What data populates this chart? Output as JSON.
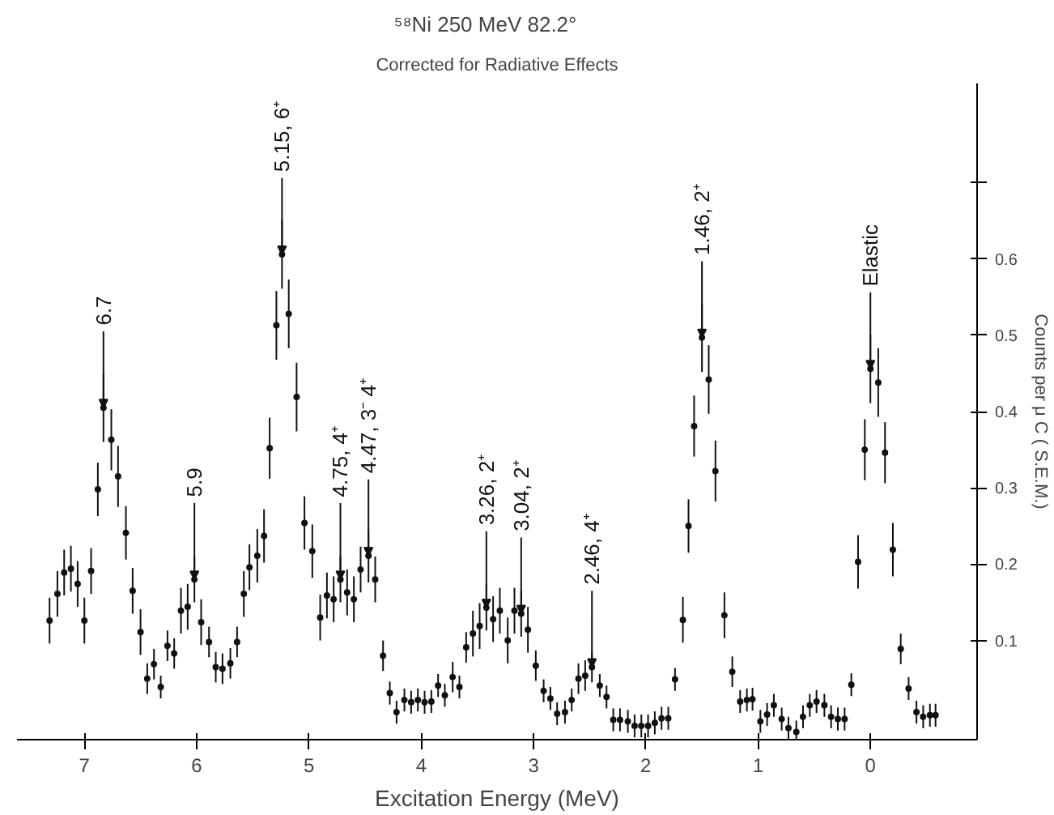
{
  "chart_data": {
    "type": "scatter",
    "title": "⁵⁸Ni   250 MeV   82.2°",
    "subtitle": "Corrected for Radiative Effects",
    "xlabel": "Excitation Energy (MeV)",
    "ylabel": "Counts per μ C ( S.E.M.)",
    "x": [
      7.31,
      7.24,
      7.18,
      7.12,
      7.06,
      7.0,
      6.94,
      6.88,
      6.83,
      6.76,
      6.7,
      6.63,
      6.57,
      6.5,
      6.44,
      6.38,
      6.32,
      6.26,
      6.2,
      6.14,
      6.08,
      6.02,
      5.96,
      5.89,
      5.83,
      5.77,
      5.7,
      5.64,
      5.58,
      5.53,
      5.46,
      5.4,
      5.35,
      5.29,
      5.24,
      5.18,
      5.11,
      5.04,
      4.97,
      4.9,
      4.84,
      4.78,
      4.72,
      4.66,
      4.6,
      4.54,
      4.47,
      4.41,
      4.34,
      4.28,
      4.22,
      4.15,
      4.09,
      4.03,
      3.97,
      3.91,
      3.85,
      3.79,
      3.72,
      3.66,
      3.6,
      3.54,
      3.48,
      3.42,
      3.36,
      3.3,
      3.23,
      3.17,
      3.11,
      3.05,
      2.98,
      2.91,
      2.85,
      2.79,
      2.72,
      2.66,
      2.6,
      2.54,
      2.48,
      2.41,
      2.35,
      2.29,
      2.23,
      2.16,
      2.1,
      2.04,
      1.98,
      1.92,
      1.86,
      1.8,
      1.74,
      1.67,
      1.62,
      1.57,
      1.5,
      1.44,
      1.38,
      1.3,
      1.23,
      1.16,
      1.1,
      1.05,
      0.98,
      0.92,
      0.86,
      0.79,
      0.73,
      0.66,
      0.6,
      0.54,
      0.48,
      0.41,
      0.35,
      0.29,
      0.23,
      0.17,
      0.11,
      0.05,
      0.0,
      -0.07,
      -0.13,
      -0.2,
      -0.27,
      -0.34,
      -0.41,
      -0.47,
      -0.53,
      -0.58
    ],
    "values": [
      0.126,
      0.161,
      0.189,
      0.194,
      0.174,
      0.126,
      0.191,
      0.298,
      0.405,
      0.363,
      0.315,
      0.241,
      0.165,
      0.111,
      0.05,
      0.069,
      0.039,
      0.093,
      0.083,
      0.139,
      0.144,
      0.18,
      0.124,
      0.098,
      0.065,
      0.063,
      0.07,
      0.098,
      0.161,
      0.196,
      0.211,
      0.237,
      0.352,
      0.513,
      0.606,
      0.528,
      0.419,
      0.254,
      0.217,
      0.13,
      0.159,
      0.154,
      0.18,
      0.163,
      0.154,
      0.193,
      0.211,
      0.18,
      0.08,
      0.031,
      0.006,
      0.022,
      0.019,
      0.022,
      0.019,
      0.02,
      0.041,
      0.028,
      0.052,
      0.039,
      0.091,
      0.109,
      0.119,
      0.143,
      0.128,
      0.139,
      0.1,
      0.139,
      0.135,
      0.114,
      0.067,
      0.034,
      0.024,
      0.004,
      0.006,
      0.022,
      0.05,
      0.054,
      0.065,
      0.041,
      0.026,
      -0.004,
      -0.004,
      -0.006,
      -0.012,
      -0.012,
      -0.012,
      -0.008,
      -0.002,
      -0.002,
      0.049,
      0.127,
      0.25,
      0.381,
      0.497,
      0.442,
      0.322,
      0.133,
      0.059,
      0.02,
      0.022,
      0.023,
      -0.006,
      0.003,
      0.015,
      -0.003,
      -0.015,
      -0.02,
      0.0,
      0.015,
      0.02,
      0.015,
      0.0,
      -0.003,
      -0.003,
      0.042,
      0.203,
      0.35,
      0.456,
      0.438,
      0.346,
      0.219,
      0.089,
      0.037,
      0.006,
      0.0,
      0.002,
      0.002
    ],
    "errors": [
      0.03,
      0.03,
      0.03,
      0.03,
      0.03,
      0.03,
      0.03,
      0.035,
      0.045,
      0.04,
      0.04,
      0.035,
      0.03,
      0.03,
      0.02,
      0.02,
      0.015,
      0.02,
      0.02,
      0.03,
      0.03,
      0.03,
      0.03,
      0.02,
      0.02,
      0.02,
      0.02,
      0.02,
      0.03,
      0.03,
      0.035,
      0.035,
      0.04,
      0.045,
      0.045,
      0.045,
      0.045,
      0.035,
      0.035,
      0.03,
      0.03,
      0.03,
      0.03,
      0.03,
      0.03,
      0.03,
      0.035,
      0.03,
      0.02,
      0.015,
      0.015,
      0.015,
      0.015,
      0.015,
      0.015,
      0.015,
      0.015,
      0.015,
      0.02,
      0.015,
      0.02,
      0.03,
      0.03,
      0.03,
      0.03,
      0.03,
      0.03,
      0.03,
      0.03,
      0.03,
      0.02,
      0.015,
      0.015,
      0.015,
      0.015,
      0.015,
      0.02,
      0.02,
      0.02,
      0.015,
      0.015,
      0.015,
      0.015,
      0.015,
      0.015,
      0.015,
      0.015,
      0.015,
      0.015,
      0.015,
      0.015,
      0.03,
      0.035,
      0.04,
      0.045,
      0.045,
      0.04,
      0.03,
      0.02,
      0.015,
      0.015,
      0.015,
      0.015,
      0.015,
      0.015,
      0.015,
      0.015,
      0.015,
      0.015,
      0.015,
      0.015,
      0.015,
      0.015,
      0.015,
      0.015,
      0.015,
      0.035,
      0.04,
      0.045,
      0.045,
      0.04,
      0.035,
      0.02,
      0.015,
      0.015,
      0.015,
      0.015,
      0.015
    ],
    "color": "#111111",
    "marker": "circle",
    "grid": false,
    "xlim": [
      7.6,
      -0.95
    ],
    "xticks": [
      7,
      6,
      5,
      4,
      3,
      2,
      1,
      0
    ],
    "ylim": [
      -0.03,
      0.83
    ],
    "yticks": [
      0.1,
      0.2,
      0.3,
      0.4,
      0.5,
      0.6,
      {
        "value": 0.7,
        "label": null
      }
    ],
    "annotations": [
      {
        "text": "6.7",
        "x": 6.83,
        "y": 0.405
      },
      {
        "text": "5.9",
        "x": 6.02,
        "y": 0.18
      },
      {
        "text": "5.15, 6⁺",
        "x": 5.24,
        "y": 0.606
      },
      {
        "text": "4.75, 4⁺",
        "x": 4.72,
        "y": 0.18
      },
      {
        "text": "4.47, 3⁻ 4⁺",
        "x": 4.47,
        "y": 0.211
      },
      {
        "text": "3.26, 2⁺",
        "x": 3.42,
        "y": 0.143
      },
      {
        "text": "3.04, 2⁺",
        "x": 3.11,
        "y": 0.135
      },
      {
        "text": "2.46, 4⁺",
        "x": 2.48,
        "y": 0.065
      },
      {
        "text": "1.46, 2⁺",
        "x": 1.5,
        "y": 0.497
      },
      {
        "text": "Elastic",
        "x": 0.0,
        "y": 0.456
      }
    ]
  }
}
